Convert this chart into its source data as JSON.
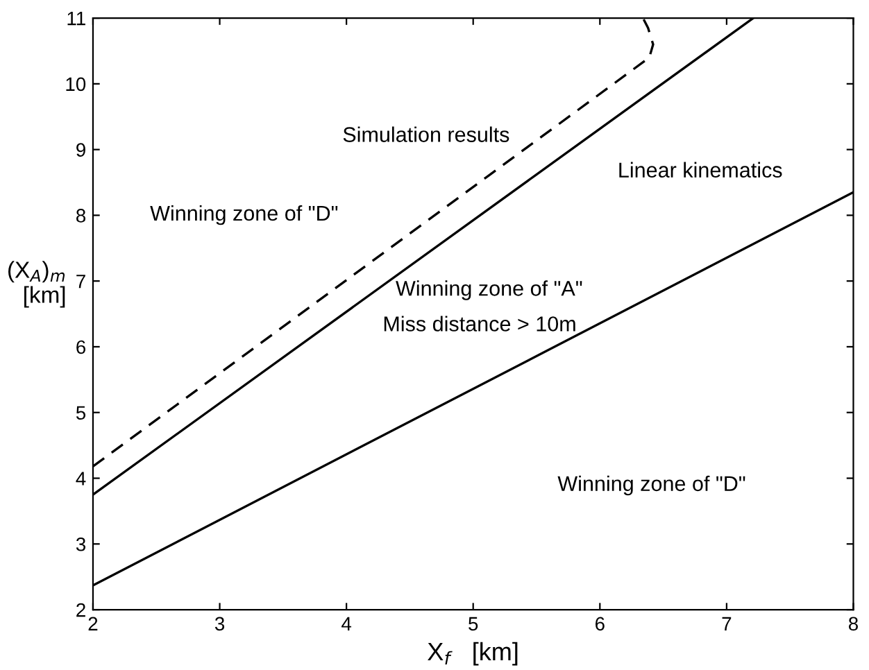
{
  "chart_data": {
    "type": "line",
    "xlabel": "X$_{f}$   [km]",
    "ylabel": "(X$_{A}$)$_{m}$\n[km]",
    "series": [
      {
        "color": "#000000",
        "line_style": "dashed",
        "x": [
          2,
          6.39,
          6.42,
          6.38,
          6.34
        ],
        "values": [
          4.18,
          10.4,
          10.6,
          10.85,
          11
        ]
      },
      {
        "color": "#000000",
        "line_style": "solid",
        "x": [
          2,
          7.21
        ],
        "values": [
          3.75,
          11
        ]
      },
      {
        "color": "#000000",
        "line_style": "solid",
        "x": [
          2,
          8
        ],
        "values": [
          2.37,
          8.35
        ]
      }
    ],
    "xlim": [
      2,
      8
    ],
    "ylim": [
      2,
      11
    ],
    "xticks": [
      2,
      3,
      4,
      5,
      6,
      7,
      8
    ],
    "yticks": [
      2,
      3,
      4,
      5,
      6,
      7,
      8,
      9,
      10,
      11
    ],
    "grid": false,
    "legend": false,
    "annotations": [
      "Simulation results",
      "Linear kinematics",
      "Winning zone of \"D\"",
      "Winning zone of \"A\"",
      "Miss distance > 10m",
      "Winning zone of \"D\""
    ]
  }
}
